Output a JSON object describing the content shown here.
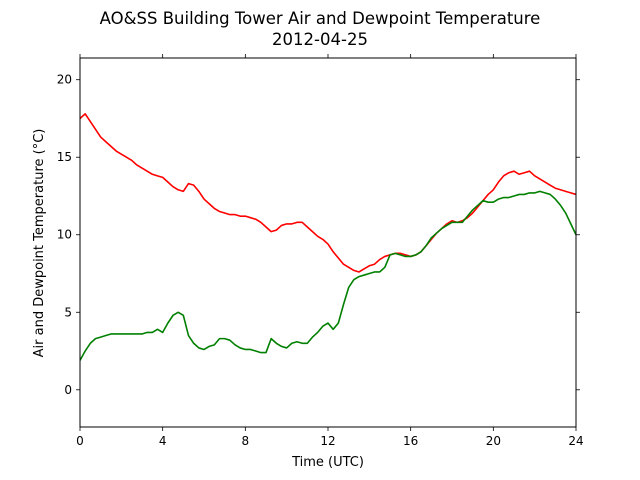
{
  "chart_data": {
    "type": "line",
    "title": "AO&SS Building Tower Air and Dewpoint Temperature",
    "subtitle": "2012-04-25",
    "xlabel": "Time (UTC)",
    "ylabel": "Air and Dewpoint Temperature (°C)",
    "xlim": [
      0,
      24
    ],
    "ylim": [
      -2.4,
      21.4
    ],
    "x_ticks": [
      0,
      4,
      8,
      12,
      16,
      20,
      24
    ],
    "y_ticks": [
      0,
      5,
      10,
      15,
      20
    ],
    "grid": false,
    "legend": "none",
    "x": [
      0,
      0.25,
      0.5,
      0.75,
      1,
      1.25,
      1.5,
      1.75,
      2,
      2.25,
      2.5,
      2.75,
      3,
      3.25,
      3.5,
      3.75,
      4,
      4.25,
      4.5,
      4.75,
      5,
      5.25,
      5.5,
      5.75,
      6,
      6.25,
      6.5,
      6.75,
      7,
      7.25,
      7.5,
      7.75,
      8,
      8.25,
      8.5,
      8.75,
      9,
      9.25,
      9.5,
      9.75,
      10,
      10.25,
      10.5,
      10.75,
      11,
      11.25,
      11.5,
      11.75,
      12,
      12.25,
      12.5,
      12.75,
      13,
      13.25,
      13.5,
      13.75,
      14,
      14.25,
      14.5,
      14.75,
      15,
      15.25,
      15.5,
      15.75,
      16,
      16.25,
      16.5,
      16.75,
      17,
      17.25,
      17.5,
      17.75,
      18,
      18.25,
      18.5,
      18.75,
      19,
      19.25,
      19.5,
      19.75,
      20,
      20.25,
      20.5,
      20.75,
      21,
      21.25,
      21.5,
      21.75,
      22,
      22.25,
      22.5,
      22.75,
      23,
      23.25,
      23.5,
      23.75,
      24
    ],
    "series": [
      {
        "color": "#ff0000",
        "values": [
          17.5,
          17.8,
          17.3,
          16.8,
          16.3,
          16.0,
          15.7,
          15.4,
          15.2,
          15.0,
          14.8,
          14.5,
          14.3,
          14.1,
          13.9,
          13.8,
          13.7,
          13.4,
          13.1,
          12.9,
          12.8,
          13.3,
          13.2,
          12.8,
          12.3,
          12.0,
          11.7,
          11.5,
          11.4,
          11.3,
          11.3,
          11.2,
          11.2,
          11.1,
          11.0,
          10.8,
          10.5,
          10.2,
          10.3,
          10.6,
          10.7,
          10.7,
          10.8,
          10.8,
          10.5,
          10.2,
          9.9,
          9.7,
          9.4,
          8.9,
          8.5,
          8.1,
          7.9,
          7.7,
          7.6,
          7.8,
          8.0,
          8.1,
          8.4,
          8.6,
          8.7,
          8.8,
          8.8,
          8.7,
          8.6,
          8.7,
          8.9,
          9.3,
          9.7,
          10.1,
          10.4,
          10.7,
          10.9,
          10.8,
          10.9,
          11.1,
          11.4,
          11.8,
          12.2,
          12.6,
          12.9,
          13.4,
          13.8,
          14.0,
          14.1,
          13.9,
          14.0,
          14.1,
          13.8,
          13.6,
          13.4,
          13.2,
          13.0,
          12.9,
          12.8,
          12.7,
          12.6
        ]
      },
      {
        "color": "#008000",
        "values": [
          1.9,
          2.5,
          3.0,
          3.3,
          3.4,
          3.5,
          3.6,
          3.6,
          3.6,
          3.6,
          3.6,
          3.6,
          3.6,
          3.7,
          3.7,
          3.9,
          3.7,
          4.3,
          4.8,
          5.0,
          4.8,
          3.5,
          3.0,
          2.7,
          2.6,
          2.8,
          2.9,
          3.3,
          3.3,
          3.2,
          2.9,
          2.7,
          2.6,
          2.6,
          2.5,
          2.4,
          2.4,
          3.3,
          3.0,
          2.8,
          2.7,
          3.0,
          3.1,
          3.0,
          3.0,
          3.4,
          3.7,
          4.1,
          4.3,
          3.9,
          4.3,
          5.5,
          6.6,
          7.1,
          7.3,
          7.4,
          7.5,
          7.6,
          7.6,
          7.9,
          8.7,
          8.8,
          8.7,
          8.6,
          8.6,
          8.7,
          8.9,
          9.3,
          9.8,
          10.1,
          10.4,
          10.6,
          10.8,
          10.8,
          10.8,
          11.2,
          11.6,
          11.9,
          12.2,
          12.1,
          12.1,
          12.3,
          12.4,
          12.4,
          12.5,
          12.6,
          12.6,
          12.7,
          12.7,
          12.8,
          12.7,
          12.6,
          12.3,
          11.9,
          11.4,
          10.7,
          10.0
        ]
      }
    ]
  }
}
